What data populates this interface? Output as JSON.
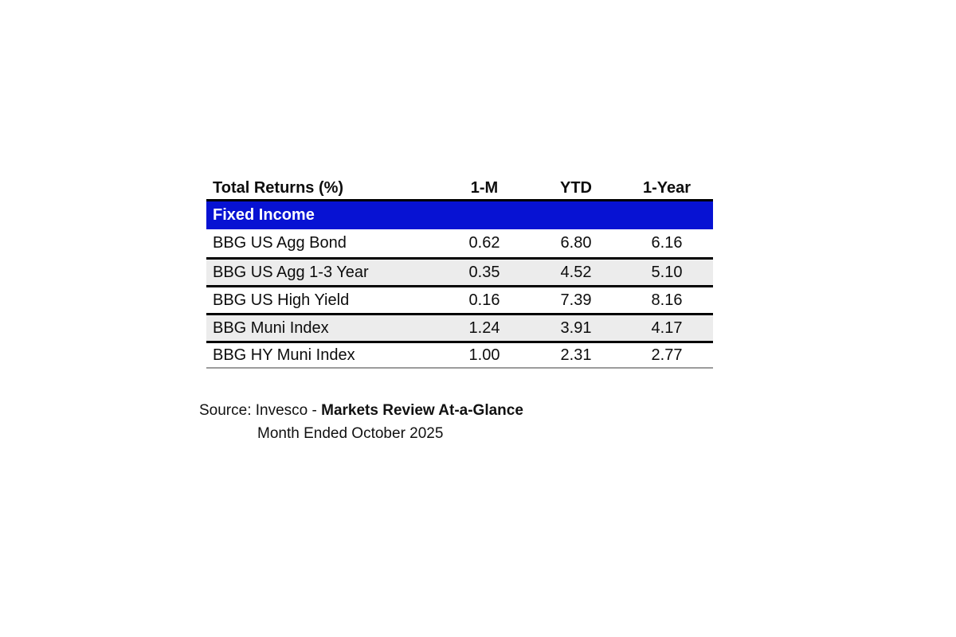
{
  "table": {
    "title": "Total Returns (%)",
    "columns": [
      "1-M",
      "YTD",
      "1-Year"
    ],
    "section_label": "Fixed Income",
    "rows": [
      {
        "name": "BBG US Agg Bond",
        "m1": "0.62",
        "ytd": "6.80",
        "y1": "6.16"
      },
      {
        "name": "BBG US Agg 1-3 Year",
        "m1": "0.35",
        "ytd": "4.52",
        "y1": "5.10"
      },
      {
        "name": "BBG US High Yield",
        "m1": "0.16",
        "ytd": "7.39",
        "y1": "8.16"
      },
      {
        "name": "BBG Muni Index",
        "m1": "1.24",
        "ytd": "3.91",
        "y1": "4.17"
      },
      {
        "name": "BBG HY Muni Index",
        "m1": "1.00",
        "ytd": "2.31",
        "y1": "2.77"
      }
    ]
  },
  "source": {
    "prefix": "Source: Invesco - ",
    "publication": "Markets Review At-a-Glance",
    "period": "Month Ended October 2025"
  },
  "colors": {
    "section_bg": "#0712d3",
    "alt_row_bg": "#ececec",
    "rule": "#000000",
    "bottom_rule": "#9c9c9c"
  },
  "chart_data": {
    "type": "table",
    "title": "Total Returns (%)",
    "columns": [
      "1-M",
      "YTD",
      "1-Year"
    ],
    "section": "Fixed Income",
    "rows": [
      [
        "BBG US Agg Bond",
        0.62,
        6.8,
        6.16
      ],
      [
        "BBG US Agg 1-3 Year",
        0.35,
        4.52,
        5.1
      ],
      [
        "BBG US High Yield",
        0.16,
        7.39,
        8.16
      ],
      [
        "BBG Muni Index",
        1.24,
        3.91,
        4.17
      ],
      [
        "BBG HY Muni Index",
        1.0,
        2.31,
        2.77
      ]
    ]
  }
}
